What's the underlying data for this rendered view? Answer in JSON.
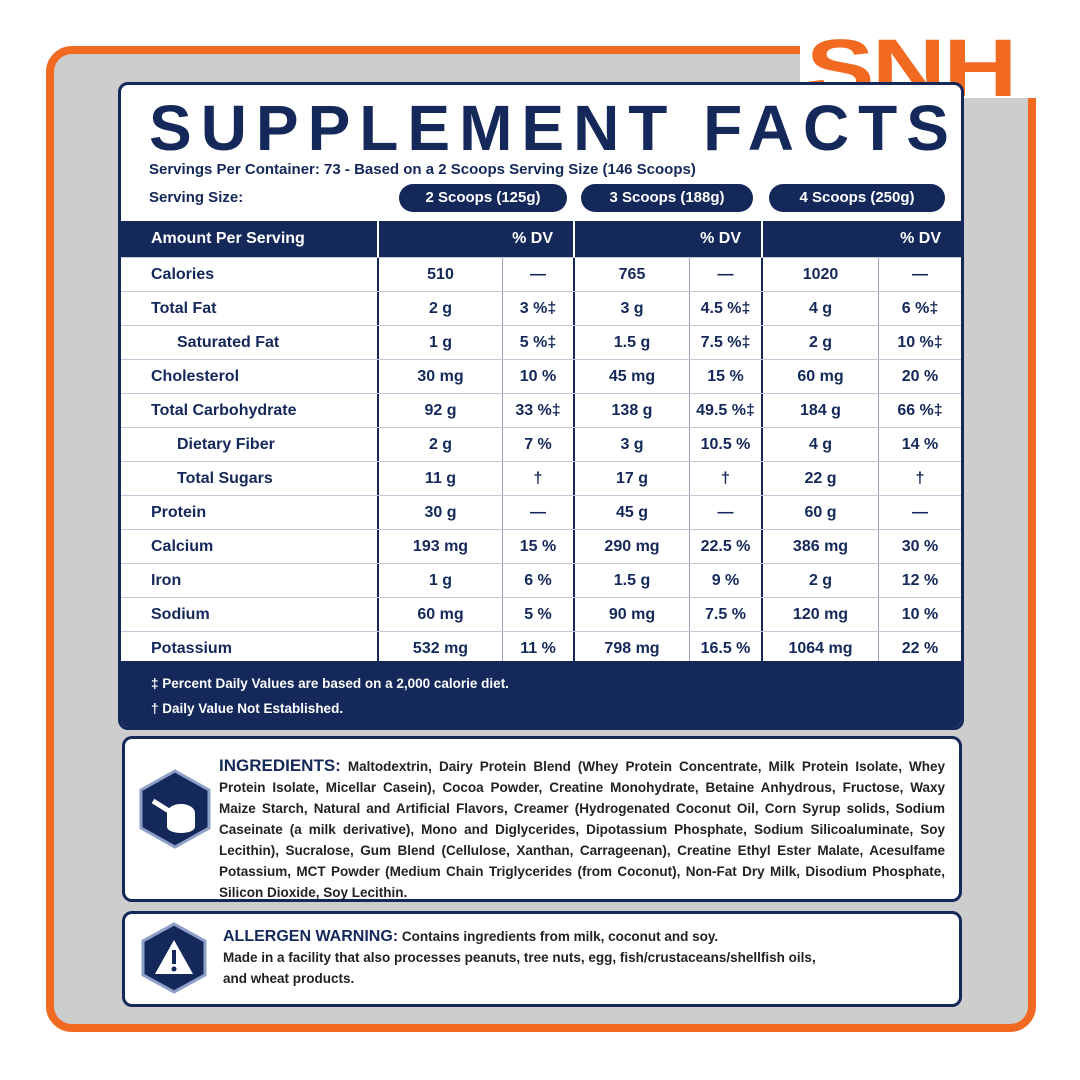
{
  "brand": "SNH",
  "title": "SUPPLEMENT FACTS",
  "servings_per_container": "Servings Per Container: 73 - Based on a 2 Scoops Serving Size (146 Scoops)",
  "serving_size_label": "Serving Size:",
  "serving_sizes": [
    "2 Scoops (125g)",
    "3 Scoops (188g)",
    "4 Scoops (250g)"
  ],
  "table": {
    "header": [
      "Amount Per Serving",
      "% DV",
      "% DV",
      "% DV"
    ],
    "rows": [
      {
        "name": "Calories",
        "cells": [
          "510",
          "—",
          "765",
          "—",
          "1020",
          "—"
        ]
      },
      {
        "name": "Total Fat",
        "cells": [
          "2 g",
          "3 %‡",
          "3 g",
          "4.5 %‡",
          "4 g",
          "6 %‡"
        ]
      },
      {
        "name": "Saturated Fat",
        "indented": true,
        "cells": [
          "1 g",
          "5 %‡",
          "1.5 g",
          "7.5 %‡",
          "2 g",
          "10 %‡"
        ]
      },
      {
        "name": "Cholesterol",
        "cells": [
          "30 mg",
          "10 %",
          "45 mg",
          "15 %",
          "60 mg",
          "20 %"
        ]
      },
      {
        "name": "Total Carbohydrate",
        "cells": [
          "92 g",
          "33 %‡",
          "138 g",
          "49.5 %‡",
          "184 g",
          "66 %‡"
        ]
      },
      {
        "name": "Dietary Fiber",
        "indented": true,
        "cells": [
          "2 g",
          "7 %",
          "3 g",
          "10.5 %",
          "4 g",
          "14 %"
        ]
      },
      {
        "name": "Total Sugars",
        "indented": true,
        "cells": [
          "11 g",
          "†",
          "17 g",
          "†",
          "22 g",
          "†"
        ]
      },
      {
        "name": "Protein",
        "cells": [
          "30 g",
          "—",
          "45 g",
          "—",
          "60 g",
          "—"
        ]
      },
      {
        "name": "Calcium",
        "cells": [
          "193 mg",
          "15 %",
          "290 mg",
          "22.5 %",
          "386 mg",
          "30 %"
        ]
      },
      {
        "name": "Iron",
        "cells": [
          "1 g",
          "6 %",
          "1.5 g",
          "9 %",
          "2 g",
          "12 %"
        ]
      },
      {
        "name": "Sodium",
        "cells": [
          "60 mg",
          "5 %",
          "90 mg",
          "7.5 %",
          "120 mg",
          "10 %"
        ]
      },
      {
        "name": "Potassium",
        "cells": [
          "532 mg",
          "11 %",
          "798 mg",
          "16.5 %",
          "1064 mg",
          "22 %"
        ]
      }
    ]
  },
  "footnotes": [
    "‡ Percent Daily Values are based on a 2,000 calorie diet.",
    "† Daily Value Not Established."
  ],
  "ingredients": {
    "label": "INGREDIENTS:",
    "text": "Maltodextrin, Dairy Protein Blend (Whey Protein Concentrate, Milk Protein Isolate, Whey Protein Isolate, Micellar Casein), Cocoa Powder, Creatine Monohydrate, Betaine Anhydrous, Fructose, Waxy Maize Starch, Natural and Artificial Flavors, Creamer (Hydrogenated Coconut Oil, Corn Syrup solids, Sodium Caseinate (a milk derivative), Mono and Diglycerides, Dipotassium Phosphate, Sodium Silicoaluminate, Soy Lecithin), Sucralose, Gum Blend (Cellulose, Xanthan, Carrageenan), Creatine Ethyl Ester Malate, Acesulfame Potassium, MCT Powder (Medium Chain Triglycerides (from Coconut), Non-Fat Dry Milk, Disodium Phosphate, Silicon Dioxide, Soy Lecithin."
  },
  "allergen": {
    "label": "ALLERGEN WARNING:",
    "text": "Contains ingredients from milk, coconut and soy.",
    "note": "Made in a facility that also processes peanuts, tree nuts, egg, fish/crustaceans/shellfish oils, and wheat products."
  }
}
